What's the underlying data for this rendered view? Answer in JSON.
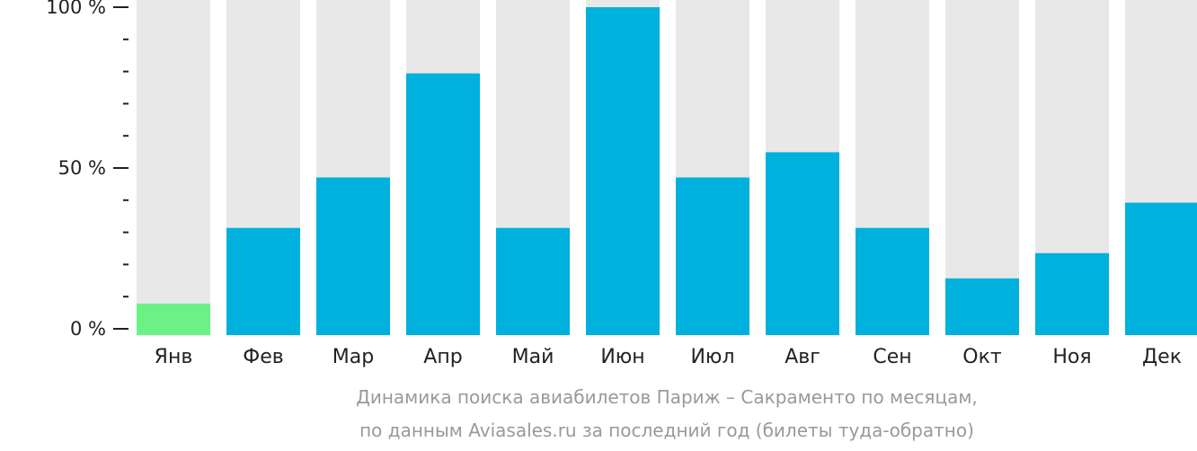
{
  "chart_data": {
    "type": "bar",
    "categories": [
      "Янв",
      "Фев",
      "Мар",
      "Апр",
      "Май",
      "Июн",
      "Июл",
      "Авг",
      "Сен",
      "Окт",
      "Ноя",
      "Дек"
    ],
    "values": [
      6,
      30,
      46,
      79,
      30,
      100,
      46,
      54,
      30,
      14,
      22,
      38
    ],
    "highlight_index": 0,
    "ylim": [
      0,
      100
    ],
    "yticks": [
      "0 %",
      "50 %",
      "100 %"
    ],
    "colors": {
      "bar": "#00b0dd",
      "highlight": "#6cf184",
      "background": "#e8e8e8"
    },
    "title_lines": [
      "Динамика поиска авиабилетов Париж – Сакраменто по месяцам,",
      "по данным Aviasales.ru за последний год (билеты туда-обратно)"
    ]
  }
}
